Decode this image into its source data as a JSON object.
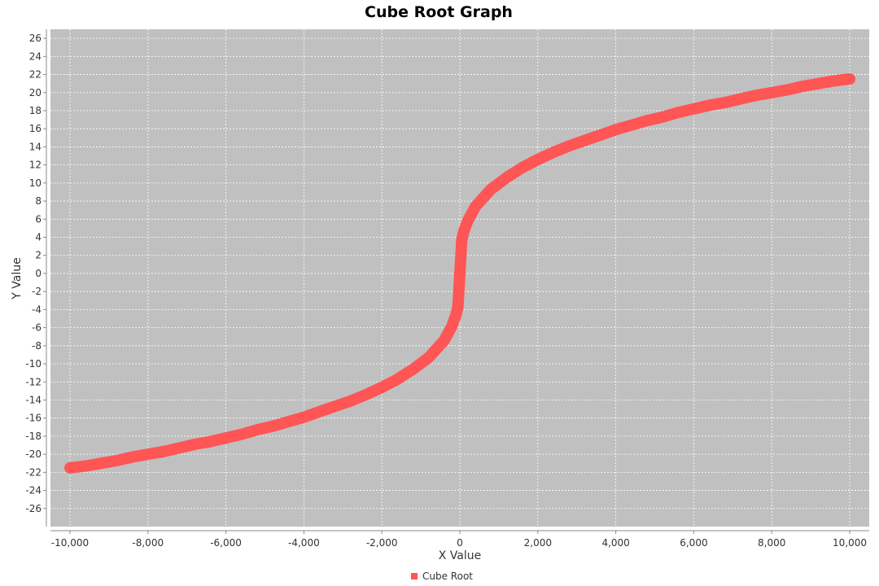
{
  "chart_data": {
    "type": "line",
    "title": "Cube Root Graph",
    "xlabel": "X Value",
    "ylabel": "Y Value",
    "xlim": [
      -10500,
      10500
    ],
    "ylim": [
      -28,
      27
    ],
    "x_ticks": [
      -10000,
      -8000,
      -6000,
      -4000,
      -2000,
      0,
      2000,
      4000,
      6000,
      8000,
      10000
    ],
    "x_tick_labels": [
      "-10,000",
      "-8,000",
      "-6,000",
      "-4,000",
      "-2,000",
      "0",
      "2,000",
      "4,000",
      "6,000",
      "8,000",
      "10,000"
    ],
    "y_ticks": [
      -26,
      -24,
      -22,
      -20,
      -18,
      -16,
      -14,
      -12,
      -10,
      -8,
      -6,
      -4,
      -2,
      0,
      2,
      4,
      6,
      8,
      10,
      12,
      14,
      16,
      18,
      20,
      22,
      24,
      26
    ],
    "y_tick_labels": [
      "-26",
      "-24",
      "-22",
      "-20",
      "-18",
      "-16",
      "-14",
      "-12",
      "-10",
      "-8",
      "-6",
      "-4",
      "-2",
      "0",
      "2",
      "4",
      "6",
      "8",
      "10",
      "12",
      "14",
      "16",
      "18",
      "20",
      "22",
      "24",
      "26"
    ],
    "grid": true,
    "legend_position": "bottom-center",
    "plot_background": "#c0c0c0",
    "series": [
      {
        "name": "Cube Root",
        "color": "#ff5555",
        "x": [
          -10000,
          -9600,
          -9200,
          -8800,
          -8400,
          -8000,
          -7600,
          -7200,
          -6800,
          -6400,
          -6000,
          -5600,
          -5200,
          -4800,
          -4400,
          -4000,
          -3600,
          -3200,
          -2800,
          -2400,
          -2000,
          -1600,
          -1200,
          -800,
          -400,
          -200,
          -100,
          -50,
          0,
          50,
          100,
          200,
          400,
          800,
          1200,
          1600,
          2000,
          2400,
          2800,
          3200,
          3600,
          4000,
          4400,
          4800,
          5200,
          5600,
          6000,
          6400,
          6800,
          7200,
          7600,
          8000,
          8400,
          8800,
          9200,
          9600,
          10000
        ],
        "y": [
          -21.5,
          -21.3,
          -21.0,
          -20.7,
          -20.3,
          -20.0,
          -19.7,
          -19.3,
          -18.9,
          -18.6,
          -18.2,
          -17.8,
          -17.3,
          -16.9,
          -16.4,
          -15.9,
          -15.3,
          -14.7,
          -14.1,
          -13.4,
          -12.6,
          -11.7,
          -10.6,
          -9.3,
          -7.4,
          -5.8,
          -4.6,
          -3.7,
          0,
          3.7,
          4.6,
          5.8,
          7.4,
          9.3,
          10.6,
          11.7,
          12.6,
          13.4,
          14.1,
          14.7,
          15.3,
          15.9,
          16.4,
          16.9,
          17.3,
          17.8,
          18.2,
          18.6,
          18.9,
          19.3,
          19.7,
          20.0,
          20.3,
          20.7,
          21.0,
          21.3,
          21.5
        ]
      }
    ]
  }
}
